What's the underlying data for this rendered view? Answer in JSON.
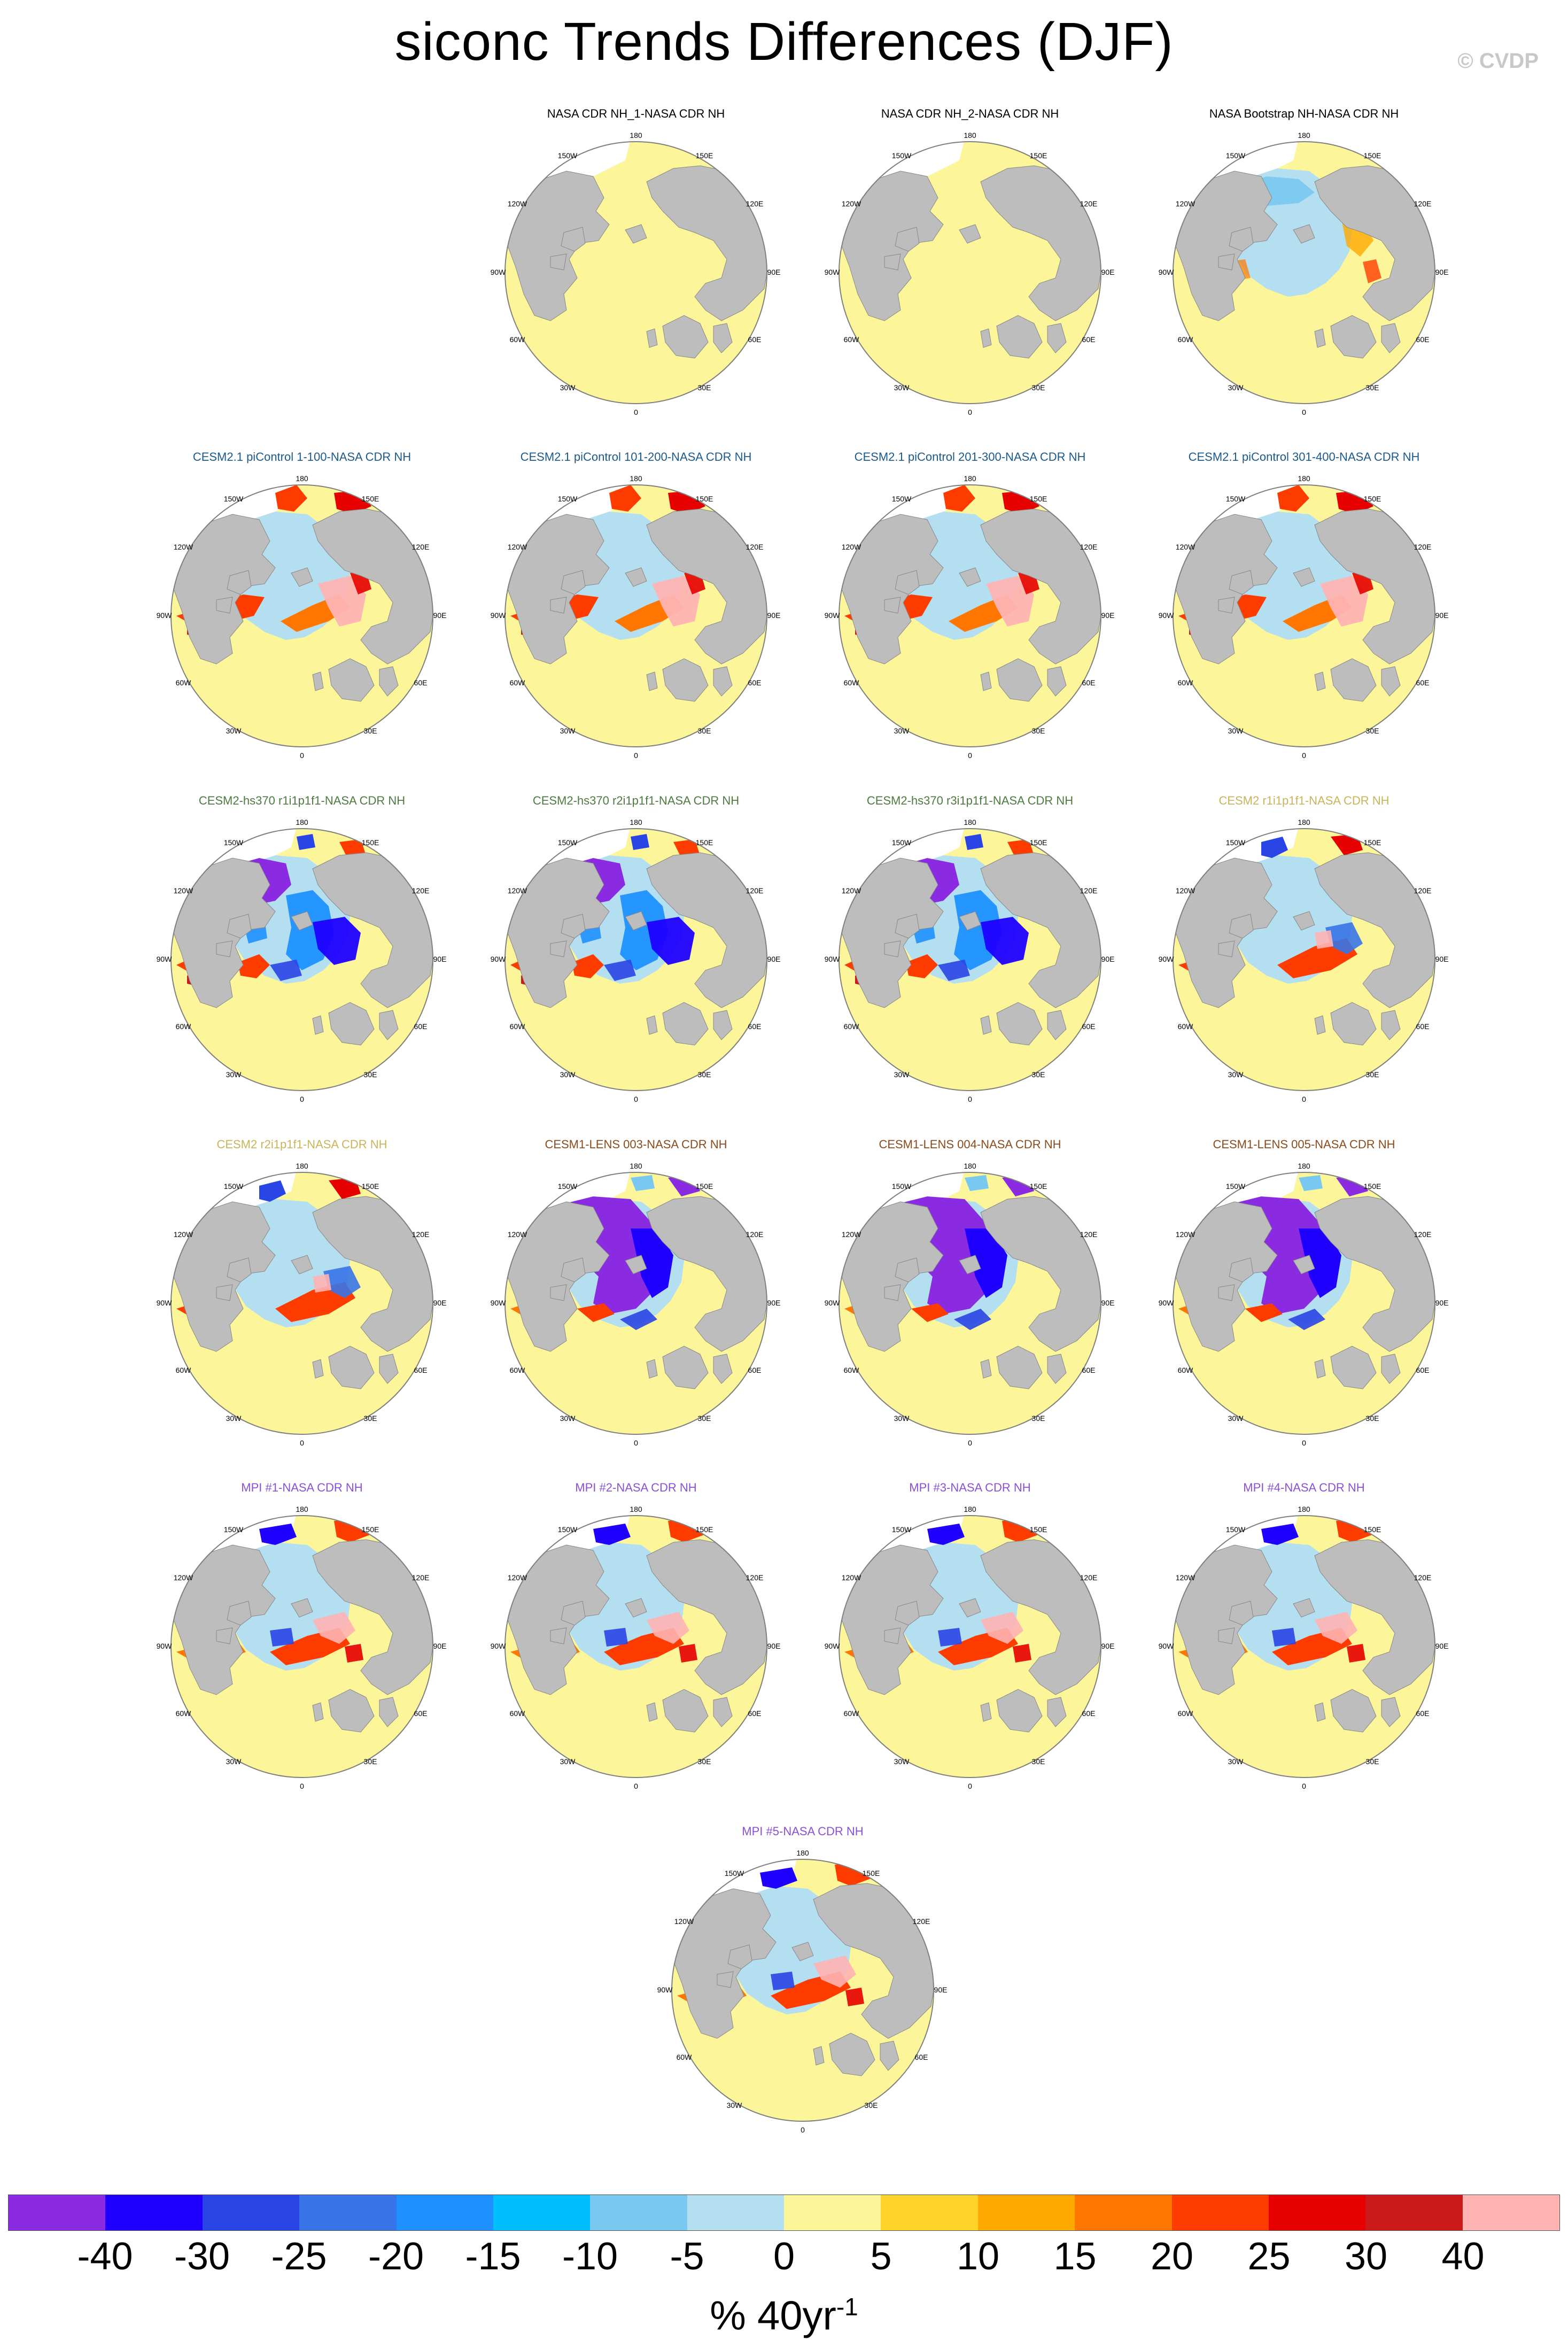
{
  "title": "siconc Trends Differences (DJF)",
  "copyright": "© CVDP",
  "colors": {
    "ocean": "#fcf59a",
    "land": "#bdbdbd",
    "ice": "#b3dff1",
    "title_black": "#000000",
    "title_blue": "#1a5a8c",
    "title_green": "#4d7a3f",
    "title_gold": "#c9b45a",
    "title_brown": "#8a4b1c",
    "title_purple": "#8a4fd8"
  },
  "map_labels": {
    "top": "180",
    "upper_left": "150W",
    "upper_right": "150E",
    "left_upper": "120W",
    "right_upper": "120E",
    "left": "90W",
    "right": "90E",
    "left_lower": "60W",
    "right_lower": "60E",
    "lower_left": "30W",
    "lower_right": "30E",
    "bottom": "0"
  },
  "panels": [
    {
      "title": "NASA CDR NH_1-NASA CDR NH",
      "title_color": "title_black",
      "pattern": "obs_zero",
      "row": 0,
      "col": 1
    },
    {
      "title": "NASA CDR NH_2-NASA CDR NH",
      "title_color": "title_black",
      "pattern": "obs_zero",
      "row": 0,
      "col": 2
    },
    {
      "title": "NASA Bootstrap NH-NASA CDR NH",
      "title_color": "title_black",
      "pattern": "bootstrap",
      "row": 0,
      "col": 3
    },
    {
      "title": "CESM2.1 piControl 1-100-NASA CDR NH",
      "title_color": "title_blue",
      "pattern": "pictrl",
      "row": 1,
      "col": 0
    },
    {
      "title": "CESM2.1 piControl 101-200-NASA CDR NH",
      "title_color": "title_blue",
      "pattern": "pictrl",
      "row": 1,
      "col": 1
    },
    {
      "title": "CESM2.1 piControl 201-300-NASA CDR NH",
      "title_color": "title_blue",
      "pattern": "pictrl",
      "row": 1,
      "col": 2
    },
    {
      "title": "CESM2.1 piControl 301-400-NASA CDR NH",
      "title_color": "title_blue",
      "pattern": "pictrl",
      "row": 1,
      "col": 3
    },
    {
      "title": "CESM2-hs370 r1i1p1f1-NASA CDR NH",
      "title_color": "title_green",
      "pattern": "hs370",
      "row": 2,
      "col": 0
    },
    {
      "title": "CESM2-hs370 r2i1p1f1-NASA CDR NH",
      "title_color": "title_green",
      "pattern": "hs370",
      "row": 2,
      "col": 1
    },
    {
      "title": "CESM2-hs370 r3i1p1f1-NASA CDR NH",
      "title_color": "title_green",
      "pattern": "hs370",
      "row": 2,
      "col": 2
    },
    {
      "title": "CESM2 r1i1p1f1-NASA CDR NH",
      "title_color": "title_gold",
      "pattern": "cesm2",
      "row": 2,
      "col": 3
    },
    {
      "title": "CESM2 r2i1p1f1-NASA CDR NH",
      "title_color": "title_gold",
      "pattern": "cesm2",
      "row": 3,
      "col": 0
    },
    {
      "title": "CESM1-LENS 003-NASA CDR NH",
      "title_color": "title_brown",
      "pattern": "lens",
      "row": 3,
      "col": 1
    },
    {
      "title": "CESM1-LENS 004-NASA CDR NH",
      "title_color": "title_brown",
      "pattern": "lens",
      "row": 3,
      "col": 2
    },
    {
      "title": "CESM1-LENS 005-NASA CDR NH",
      "title_color": "title_brown",
      "pattern": "lens",
      "row": 3,
      "col": 3
    },
    {
      "title": "MPI #1-NASA CDR NH",
      "title_color": "title_purple",
      "pattern": "mpi",
      "row": 4,
      "col": 0
    },
    {
      "title": "MPI #2-NASA CDR NH",
      "title_color": "title_purple",
      "pattern": "mpi",
      "row": 4,
      "col": 1
    },
    {
      "title": "MPI #3-NASA CDR NH",
      "title_color": "title_purple",
      "pattern": "mpi",
      "row": 4,
      "col": 2
    },
    {
      "title": "MPI #4-NASA CDR NH",
      "title_color": "title_purple",
      "pattern": "mpi",
      "row": 4,
      "col": 3
    },
    {
      "title": "MPI #5-NASA CDR NH",
      "title_color": "title_purple",
      "pattern": "mpi",
      "row": 5,
      "col": 1.5
    }
  ],
  "colorbar": {
    "colors": [
      "#8a2be2",
      "#1f00ff",
      "#2a45e6",
      "#3774e8",
      "#1e90ff",
      "#00bfff",
      "#78c8f0",
      "#b3dff1",
      "#fcf59a",
      "#ffd42a",
      "#ffaa00",
      "#ff7700",
      "#ff3c00",
      "#e60000",
      "#cc1a1a",
      "#ffb3b3"
    ],
    "labels": [
      "-40",
      "-30",
      "-25",
      "-20",
      "-15",
      "-10",
      "-5",
      "0",
      "5",
      "10",
      "15",
      "20",
      "25",
      "30",
      "40"
    ],
    "units_text": "% 40yr",
    "units_exponent": "-1"
  }
}
